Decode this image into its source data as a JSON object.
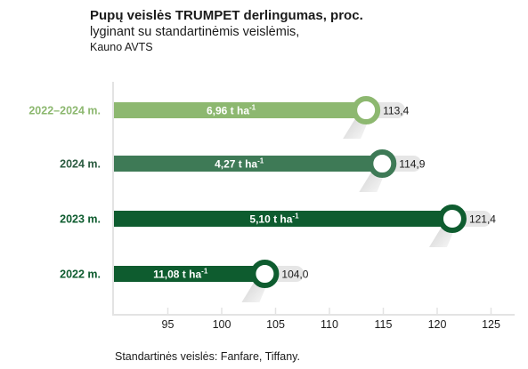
{
  "title": {
    "line1": "Pupų veislės TRUMPET derlingumas, proc.",
    "line2": "lyginant su standartinėmis veislėmis,",
    "line3": "Kauno AVTS"
  },
  "footnote": "Standartinės veislės: Fanfare, Tiffany.",
  "colors": {
    "track": "#e6e6e6",
    "axis": "#e3e3e3",
    "text": "#1a1a1a"
  },
  "chart_data": {
    "type": "bar",
    "orientation": "horizontal",
    "xlim": [
      90,
      126
    ],
    "xticks": [
      95,
      100,
      105,
      110,
      115,
      120,
      125
    ],
    "grid": false,
    "rows": [
      {
        "category": "2022–2024 m.",
        "value": 113.4,
        "value_label": "113,4",
        "inner_label": "6,96 t ha",
        "unit_sup": "-1",
        "color": "#8db870",
        "label_color": "#8db870"
      },
      {
        "category": "2024 m.",
        "value": 114.9,
        "value_label": "114,9",
        "inner_label": "4,27 t ha",
        "unit_sup": "-1",
        "color": "#3e7a56",
        "label_color": "#2b5b40"
      },
      {
        "category": "2023 m.",
        "value": 121.4,
        "value_label": "121,4",
        "inner_label": "5,10 t ha",
        "unit_sup": "-1",
        "color": "#0e5c2f",
        "label_color": "#0e5c2f"
      },
      {
        "category": "2022 m.",
        "value": 104.0,
        "value_label": "104,0",
        "inner_label": "11,08 t ha",
        "unit_sup": "-1",
        "color": "#0e5c2f",
        "label_color": "#0e5c2f"
      }
    ]
  }
}
